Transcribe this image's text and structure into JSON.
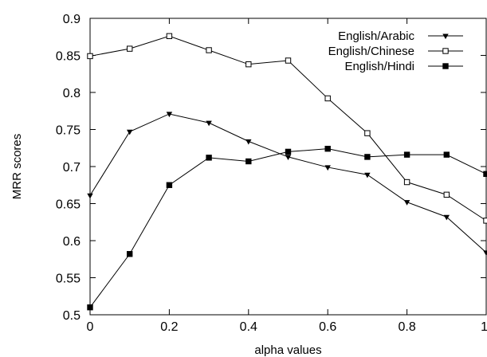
{
  "chart_data": {
    "type": "line",
    "title": "",
    "xlabel": "alpha values",
    "ylabel": "MRR scores",
    "xlim": [
      0,
      1
    ],
    "ylim": [
      0.5,
      0.9
    ],
    "x_ticks": [
      "0",
      "0.2",
      "0.4",
      "0.6",
      "0.8",
      "1"
    ],
    "y_ticks": [
      "0.5",
      "0.55",
      "0.6",
      "0.65",
      "0.7",
      "0.75",
      "0.8",
      "0.85",
      "0.9"
    ],
    "x_tick_values": [
      0,
      0.2,
      0.4,
      0.6,
      0.8,
      1
    ],
    "y_tick_values": [
      0.5,
      0.55,
      0.6,
      0.65,
      0.7,
      0.75,
      0.8,
      0.85,
      0.9
    ],
    "x": [
      0,
      0.1,
      0.2,
      0.3,
      0.4,
      0.5,
      0.6,
      0.7,
      0.8,
      0.9,
      1.0
    ],
    "legend_position": "top-right",
    "grid": false,
    "series": [
      {
        "name": "English/Arabic",
        "marker": "triangle-down",
        "color": "#000000",
        "values": [
          0.661,
          0.747,
          0.771,
          0.759,
          0.734,
          0.713,
          0.699,
          0.689,
          0.652,
          0.632,
          0.584
        ]
      },
      {
        "name": "English/Chinese",
        "marker": "open-square",
        "color": "#000000",
        "values": [
          0.849,
          0.859,
          0.876,
          0.857,
          0.838,
          0.843,
          0.792,
          0.745,
          0.679,
          0.662,
          0.627
        ]
      },
      {
        "name": "English/Hindi",
        "marker": "filled-square",
        "color": "#000000",
        "values": [
          0.51,
          0.582,
          0.675,
          0.712,
          0.707,
          0.72,
          0.724,
          0.713,
          0.716,
          0.716,
          0.69
        ]
      }
    ]
  }
}
